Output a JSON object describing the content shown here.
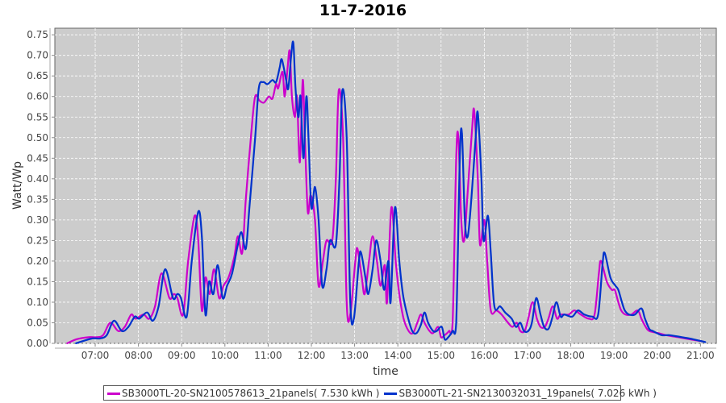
{
  "chart_data": {
    "type": "line",
    "title": "11-7-2016",
    "xlabel": "time",
    "ylabel": "Watt/Wp",
    "xlim": [
      "06:04",
      "21:22"
    ],
    "ylim": [
      0,
      0.766
    ],
    "grid": true,
    "legend_position": "bottom",
    "x_ticks": [
      "07:00",
      "08:00",
      "09:00",
      "10:00",
      "11:00",
      "12:00",
      "13:00",
      "14:00",
      "15:00",
      "16:00",
      "17:00",
      "18:00",
      "19:00",
      "20:00",
      "21:00"
    ],
    "y_ticks": [
      "0.00",
      "0.05",
      "0.10",
      "0.15",
      "0.20",
      "0.25",
      "0.30",
      "0.35",
      "0.40",
      "0.45",
      "0.50",
      "0.55",
      "0.60",
      "0.65",
      "0.70",
      "0.75"
    ],
    "colors": {
      "plot_background": "#cccccc",
      "grid": "#ffffff"
    },
    "series": [
      {
        "name": "SB3000TL-20-SN2100578613_21panels( 7.530 kWh )",
        "color": "#cc00cc",
        "points": [
          [
            "06:21",
            0.0
          ],
          [
            "06:34",
            0.01
          ],
          [
            "06:51",
            0.015
          ],
          [
            "07:02",
            0.015
          ],
          [
            "07:11",
            0.02
          ],
          [
            "07:21",
            0.05
          ],
          [
            "07:32",
            0.03
          ],
          [
            "07:41",
            0.04
          ],
          [
            "07:50",
            0.07
          ],
          [
            "07:56",
            0.06
          ],
          [
            "08:07",
            0.07
          ],
          [
            "08:15",
            0.06
          ],
          [
            "08:23",
            0.09
          ],
          [
            "08:32",
            0.17
          ],
          [
            "08:43",
            0.11
          ],
          [
            "08:49",
            0.12
          ],
          [
            "08:54",
            0.11
          ],
          [
            "09:02",
            0.07
          ],
          [
            "09:09",
            0.2
          ],
          [
            "09:18",
            0.31
          ],
          [
            "09:23",
            0.25
          ],
          [
            "09:28",
            0.08
          ],
          [
            "09:33",
            0.16
          ],
          [
            "09:39",
            0.12
          ],
          [
            "09:45",
            0.18
          ],
          [
            "09:52",
            0.11
          ],
          [
            "09:58",
            0.14
          ],
          [
            "10:05",
            0.16
          ],
          [
            "10:13",
            0.21
          ],
          [
            "10:18",
            0.26
          ],
          [
            "10:24",
            0.22
          ],
          [
            "10:29",
            0.35
          ],
          [
            "10:37",
            0.52
          ],
          [
            "10:42",
            0.6
          ],
          [
            "10:48",
            0.59
          ],
          [
            "10:54",
            0.585
          ],
          [
            "11:01",
            0.6
          ],
          [
            "11:06",
            0.595
          ],
          [
            "11:11",
            0.63
          ],
          [
            "11:14",
            0.62
          ],
          [
            "11:20",
            0.66
          ],
          [
            "11:23",
            0.6
          ],
          [
            "11:27",
            0.67
          ],
          [
            "11:30",
            0.71
          ],
          [
            "11:33",
            0.6
          ],
          [
            "11:37",
            0.55
          ],
          [
            "11:40",
            0.6
          ],
          [
            "11:44",
            0.44
          ],
          [
            "11:48",
            0.64
          ],
          [
            "11:51",
            0.5
          ],
          [
            "11:55",
            0.32
          ],
          [
            "11:59",
            0.36
          ],
          [
            "12:05",
            0.3
          ],
          [
            "12:10",
            0.14
          ],
          [
            "12:16",
            0.2
          ],
          [
            "12:21",
            0.25
          ],
          [
            "12:29",
            0.25
          ],
          [
            "12:34",
            0.4
          ],
          [
            "12:38",
            0.615
          ],
          [
            "12:44",
            0.5
          ],
          [
            "12:49",
            0.1
          ],
          [
            "12:54",
            0.07
          ],
          [
            "13:01",
            0.2
          ],
          [
            "13:04",
            0.23
          ],
          [
            "13:10",
            0.16
          ],
          [
            "13:14",
            0.12
          ],
          [
            "13:20",
            0.2
          ],
          [
            "13:25",
            0.26
          ],
          [
            "13:31",
            0.2
          ],
          [
            "13:36",
            0.14
          ],
          [
            "13:42",
            0.19
          ],
          [
            "13:45",
            0.1
          ],
          [
            "13:51",
            0.33
          ],
          [
            "13:57",
            0.2
          ],
          [
            "14:02",
            0.12
          ],
          [
            "14:08",
            0.06
          ],
          [
            "14:15",
            0.03
          ],
          [
            "14:21",
            0.025
          ],
          [
            "14:27",
            0.05
          ],
          [
            "14:32",
            0.07
          ],
          [
            "14:37",
            0.05
          ],
          [
            "14:44",
            0.03
          ],
          [
            "14:49",
            0.025
          ],
          [
            "14:56",
            0.04
          ],
          [
            "15:00",
            0.015
          ],
          [
            "15:05",
            0.02
          ],
          [
            "15:11",
            0.03
          ],
          [
            "15:16",
            0.05
          ],
          [
            "15:21",
            0.45
          ],
          [
            "15:24",
            0.5
          ],
          [
            "15:28",
            0.3
          ],
          [
            "15:32",
            0.25
          ],
          [
            "15:37",
            0.37
          ],
          [
            "15:43",
            0.52
          ],
          [
            "15:46",
            0.565
          ],
          [
            "15:51",
            0.4
          ],
          [
            "15:54",
            0.24
          ],
          [
            "16:00",
            0.3
          ],
          [
            "16:04",
            0.2
          ],
          [
            "16:09",
            0.08
          ],
          [
            "16:17",
            0.08
          ],
          [
            "16:24",
            0.07
          ],
          [
            "16:33",
            0.05
          ],
          [
            "16:39",
            0.04
          ],
          [
            "16:45",
            0.05
          ],
          [
            "16:50",
            0.03
          ],
          [
            "16:56",
            0.03
          ],
          [
            "17:01",
            0.06
          ],
          [
            "17:07",
            0.1
          ],
          [
            "17:13",
            0.06
          ],
          [
            "17:18",
            0.04
          ],
          [
            "17:24",
            0.04
          ],
          [
            "17:29",
            0.06
          ],
          [
            "17:35",
            0.09
          ],
          [
            "17:41",
            0.06
          ],
          [
            "17:46",
            0.07
          ],
          [
            "17:57",
            0.07
          ],
          [
            "18:05",
            0.08
          ],
          [
            "18:14",
            0.07
          ],
          [
            "18:25",
            0.06
          ],
          [
            "18:33",
            0.07
          ],
          [
            "18:39",
            0.17
          ],
          [
            "18:42",
            0.2
          ],
          [
            "18:50",
            0.15
          ],
          [
            "18:57",
            0.13
          ],
          [
            "19:01",
            0.13
          ],
          [
            "19:06",
            0.1
          ],
          [
            "19:10",
            0.08
          ],
          [
            "19:16",
            0.07
          ],
          [
            "19:24",
            0.07
          ],
          [
            "19:33",
            0.08
          ],
          [
            "19:38",
            0.06
          ],
          [
            "19:44",
            0.04
          ],
          [
            "19:49",
            0.03
          ],
          [
            "20:01",
            0.025
          ],
          [
            "20:12",
            0.02
          ],
          [
            "20:29",
            0.015
          ],
          [
            "20:45",
            0.01
          ],
          [
            "21:02",
            0.005
          ]
        ]
      },
      {
        "name": "SB3000TL-21-SN2130032031_19panels( 7.026 kWh )",
        "color": "#0033cc",
        "points": [
          [
            "06:33",
            0.0
          ],
          [
            "06:42",
            0.005
          ],
          [
            "06:56",
            0.012
          ],
          [
            "07:07",
            0.012
          ],
          [
            "07:16",
            0.02
          ],
          [
            "07:26",
            0.055
          ],
          [
            "07:37",
            0.03
          ],
          [
            "07:46",
            0.04
          ],
          [
            "07:55",
            0.065
          ],
          [
            "08:01",
            0.06
          ],
          [
            "08:12",
            0.075
          ],
          [
            "08:20",
            0.055
          ],
          [
            "08:28",
            0.09
          ],
          [
            "08:37",
            0.18
          ],
          [
            "08:48",
            0.11
          ],
          [
            "08:54",
            0.12
          ],
          [
            "08:59",
            0.11
          ],
          [
            "09:07",
            0.065
          ],
          [
            "09:14",
            0.2
          ],
          [
            "09:23",
            0.32
          ],
          [
            "09:28",
            0.26
          ],
          [
            "09:33",
            0.07
          ],
          [
            "09:38",
            0.15
          ],
          [
            "09:44",
            0.12
          ],
          [
            "09:50",
            0.19
          ],
          [
            "09:57",
            0.11
          ],
          [
            "10:03",
            0.14
          ],
          [
            "10:10",
            0.17
          ],
          [
            "10:18",
            0.24
          ],
          [
            "10:23",
            0.27
          ],
          [
            "10:29",
            0.23
          ],
          [
            "10:34",
            0.33
          ],
          [
            "10:42",
            0.5
          ],
          [
            "10:47",
            0.62
          ],
          [
            "10:53",
            0.635
          ],
          [
            "10:59",
            0.63
          ],
          [
            "11:06",
            0.64
          ],
          [
            "11:11",
            0.635
          ],
          [
            "11:16",
            0.67
          ],
          [
            "11:19",
            0.69
          ],
          [
            "11:25",
            0.64
          ],
          [
            "11:28",
            0.62
          ],
          [
            "11:32",
            0.7
          ],
          [
            "11:35",
            0.73
          ],
          [
            "11:38",
            0.62
          ],
          [
            "11:42",
            0.55
          ],
          [
            "11:45",
            0.6
          ],
          [
            "11:49",
            0.45
          ],
          [
            "11:53",
            0.6
          ],
          [
            "11:56",
            0.5
          ],
          [
            "12:00",
            0.33
          ],
          [
            "12:05",
            0.38
          ],
          [
            "12:10",
            0.3
          ],
          [
            "12:15",
            0.14
          ],
          [
            "12:21",
            0.18
          ],
          [
            "12:26",
            0.25
          ],
          [
            "12:34",
            0.24
          ],
          [
            "12:39",
            0.4
          ],
          [
            "12:43",
            0.615
          ],
          [
            "12:49",
            0.5
          ],
          [
            "12:54",
            0.1
          ],
          [
            "12:59",
            0.06
          ],
          [
            "13:06",
            0.2
          ],
          [
            "13:09",
            0.22
          ],
          [
            "13:15",
            0.16
          ],
          [
            "13:19",
            0.12
          ],
          [
            "13:25",
            0.18
          ],
          [
            "13:30",
            0.25
          ],
          [
            "13:36",
            0.2
          ],
          [
            "13:41",
            0.13
          ],
          [
            "13:47",
            0.2
          ],
          [
            "13:50",
            0.1
          ],
          [
            "13:56",
            0.33
          ],
          [
            "14:02",
            0.2
          ],
          [
            "14:07",
            0.12
          ],
          [
            "14:13",
            0.07
          ],
          [
            "14:20",
            0.03
          ],
          [
            "14:26",
            0.025
          ],
          [
            "14:32",
            0.045
          ],
          [
            "14:37",
            0.075
          ],
          [
            "14:42",
            0.05
          ],
          [
            "14:49",
            0.03
          ],
          [
            "14:54",
            0.03
          ],
          [
            "15:01",
            0.04
          ],
          [
            "15:05",
            0.01
          ],
          [
            "15:10",
            0.015
          ],
          [
            "15:16",
            0.03
          ],
          [
            "15:21",
            0.05
          ],
          [
            "15:26",
            0.45
          ],
          [
            "15:29",
            0.51
          ],
          [
            "15:33",
            0.3
          ],
          [
            "15:37",
            0.26
          ],
          [
            "15:42",
            0.35
          ],
          [
            "15:48",
            0.5
          ],
          [
            "15:51",
            0.56
          ],
          [
            "15:56",
            0.4
          ],
          [
            "15:59",
            0.25
          ],
          [
            "16:05",
            0.31
          ],
          [
            "16:09",
            0.22
          ],
          [
            "16:14",
            0.09
          ],
          [
            "16:22",
            0.09
          ],
          [
            "16:29",
            0.075
          ],
          [
            "16:38",
            0.06
          ],
          [
            "16:44",
            0.04
          ],
          [
            "16:50",
            0.05
          ],
          [
            "16:55",
            0.03
          ],
          [
            "17:01",
            0.03
          ],
          [
            "17:06",
            0.05
          ],
          [
            "17:12",
            0.11
          ],
          [
            "17:18",
            0.07
          ],
          [
            "17:23",
            0.04
          ],
          [
            "17:29",
            0.035
          ],
          [
            "17:34",
            0.06
          ],
          [
            "17:40",
            0.1
          ],
          [
            "17:46",
            0.065
          ],
          [
            "17:51",
            0.07
          ],
          [
            "18:02",
            0.065
          ],
          [
            "18:10",
            0.08
          ],
          [
            "18:19",
            0.07
          ],
          [
            "18:30",
            0.065
          ],
          [
            "18:38",
            0.07
          ],
          [
            "18:44",
            0.19
          ],
          [
            "18:47",
            0.22
          ],
          [
            "18:55",
            0.16
          ],
          [
            "19:02",
            0.14
          ],
          [
            "19:06",
            0.13
          ],
          [
            "19:11",
            0.1
          ],
          [
            "19:15",
            0.08
          ],
          [
            "19:21",
            0.07
          ],
          [
            "19:29",
            0.07
          ],
          [
            "19:38",
            0.085
          ],
          [
            "19:43",
            0.06
          ],
          [
            "19:49",
            0.035
          ],
          [
            "19:54",
            0.03
          ],
          [
            "20:06",
            0.02
          ],
          [
            "20:17",
            0.02
          ],
          [
            "20:34",
            0.015
          ],
          [
            "20:50",
            0.01
          ],
          [
            "21:07",
            0.003
          ]
        ]
      }
    ]
  }
}
